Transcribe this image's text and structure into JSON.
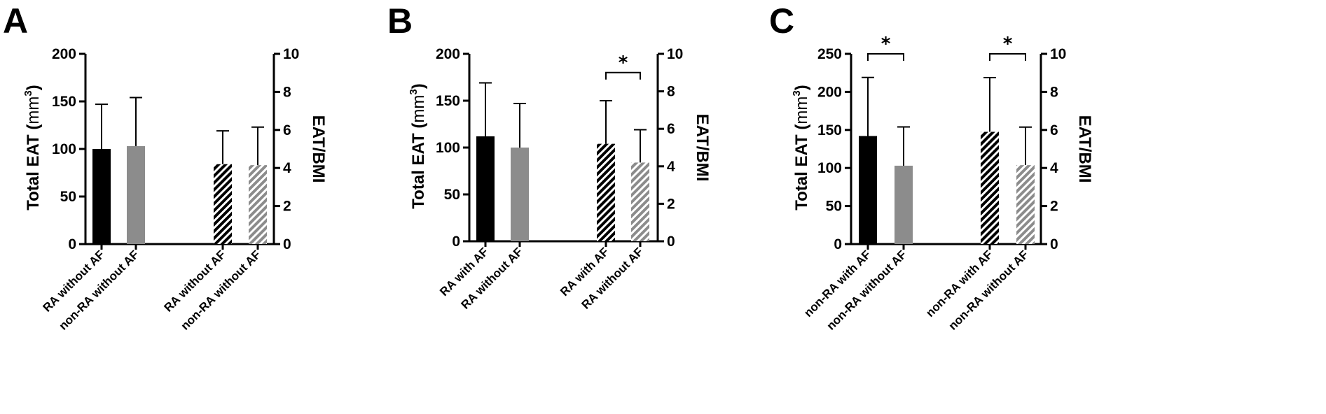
{
  "colors": {
    "black_bar": "#000000",
    "gray_bar": "#8c8c8c",
    "axis": "#000000",
    "background": "#ffffff"
  },
  "chart_data": [
    {
      "panel": "A",
      "type": "bar",
      "ylabel": "Total EAT",
      "ylabel_unit": "mm",
      "ylabel_sup": "3",
      "y2label": "EAT/BMI",
      "ylim": [
        0,
        200
      ],
      "yticks": [
        "0",
        "50",
        "100",
        "150",
        "200"
      ],
      "y2lim": [
        0,
        10
      ],
      "y2ticks": [
        "0",
        "2",
        "4",
        "6",
        "8",
        "10"
      ],
      "bars": [
        {
          "category": "RA without AF",
          "axis": "left",
          "value": 100,
          "err": 47,
          "fill": "black"
        },
        {
          "category": "non-RA without AF",
          "axis": "left",
          "value": 103,
          "err": 51,
          "fill": "gray"
        },
        {
          "category": "RA without AF",
          "axis": "right",
          "value": 4.2,
          "err": 1.75,
          "fill": "black-hatch"
        },
        {
          "category": "non-RA without AF",
          "axis": "right",
          "value": 4.15,
          "err": 2.0,
          "fill": "gray-hatch"
        }
      ],
      "significance": []
    },
    {
      "panel": "B",
      "type": "bar",
      "ylabel": "Total EAT",
      "ylabel_unit": "mm",
      "ylabel_sup": "3",
      "y2label": "EAT/BMI",
      "ylim": [
        0,
        200
      ],
      "yticks": [
        "0",
        "50",
        "100",
        "150",
        "200"
      ],
      "y2lim": [
        0,
        10
      ],
      "y2ticks": [
        "0",
        "2",
        "4",
        "6",
        "8",
        "10"
      ],
      "bars": [
        {
          "category": "RA with AF",
          "axis": "left",
          "value": 112,
          "err": 57,
          "fill": "black"
        },
        {
          "category": "RA without AF",
          "axis": "left",
          "value": 100,
          "err": 47,
          "fill": "gray"
        },
        {
          "category": "RA with AF",
          "axis": "right",
          "value": 5.2,
          "err": 2.3,
          "fill": "black-hatch"
        },
        {
          "category": "RA without AF",
          "axis": "right",
          "value": 4.2,
          "err": 1.75,
          "fill": "gray-hatch"
        }
      ],
      "significance": [
        {
          "from": 2,
          "to": 3,
          "label": "*",
          "at": 9.0,
          "axis": "right"
        }
      ]
    },
    {
      "panel": "C",
      "type": "bar",
      "ylabel": "Total EAT",
      "ylabel_unit": "mm",
      "ylabel_sup": "3",
      "y2label": "EAT/BMI",
      "ylim": [
        0,
        250
      ],
      "yticks": [
        "0",
        "50",
        "100",
        "150",
        "200",
        "250"
      ],
      "y2lim": [
        0,
        10
      ],
      "y2ticks": [
        "0",
        "2",
        "4",
        "6",
        "8",
        "10"
      ],
      "bars": [
        {
          "category": "non-RA with AF",
          "axis": "left",
          "value": 142,
          "err": 77,
          "fill": "black"
        },
        {
          "category": "non-RA without AF",
          "axis": "left",
          "value": 103,
          "err": 51,
          "fill": "gray"
        },
        {
          "category": "non-RA with AF",
          "axis": "right",
          "value": 5.9,
          "err": 2.85,
          "fill": "black-hatch"
        },
        {
          "category": "non-RA without AF",
          "axis": "right",
          "value": 4.15,
          "err": 2.0,
          "fill": "gray-hatch"
        }
      ],
      "significance": [
        {
          "from": 0,
          "to": 1,
          "label": "*",
          "at": 250,
          "axis": "left"
        },
        {
          "from": 2,
          "to": 3,
          "label": "*",
          "at": 10,
          "axis": "right"
        }
      ]
    }
  ]
}
